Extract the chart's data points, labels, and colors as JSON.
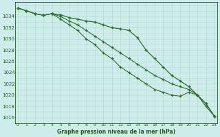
{
  "x": [
    0,
    1,
    2,
    3,
    4,
    5,
    6,
    7,
    8,
    9,
    10,
    11,
    12,
    13,
    14,
    15,
    16,
    17,
    18,
    19,
    20,
    21,
    22,
    23
  ],
  "line1": [
    1035.5,
    1035.0,
    1034.5,
    1034.2,
    1034.5,
    1034.3,
    1033.8,
    1033.5,
    1033.2,
    1033.0,
    1032.5,
    1032.0,
    1031.8,
    1031.5,
    1030.2,
    1028.0,
    1026.5,
    1025.0,
    1023.5,
    1022.5,
    1021.5,
    1020.0,
    1018.0,
    1016.2
  ],
  "line2": [
    1035.5,
    1035.0,
    1034.5,
    1034.2,
    1034.5,
    1034.0,
    1033.2,
    1032.5,
    1031.5,
    1030.5,
    1029.5,
    1028.5,
    1027.5,
    1026.5,
    1025.5,
    1024.5,
    1023.5,
    1022.8,
    1022.0,
    1021.5,
    1021.0,
    1020.0,
    1018.5,
    1016.2
  ],
  "line3": [
    1035.5,
    1035.0,
    1034.5,
    1034.2,
    1034.5,
    1033.5,
    1032.5,
    1031.5,
    1030.0,
    1029.0,
    1027.5,
    1026.5,
    1025.0,
    1024.0,
    1023.0,
    1022.0,
    1021.0,
    1020.5,
    1020.0,
    1019.8,
    1020.5,
    1020.0,
    1018.5,
    1016.2
  ],
  "line_colors": [
    "#2d6e2d",
    "#2d6e2d",
    "#2d6e2d"
  ],
  "marker_line_idx": 0,
  "bg_color": "#ceecea",
  "grid_color": "#aed8d4",
  "text_color": "#1e5c1e",
  "xlabel": "Graphe pression niveau de la mer (hPa)",
  "ylim": [
    1015.0,
    1036.5
  ],
  "xlim": [
    -0.3,
    23.3
  ],
  "yticks": [
    1016,
    1018,
    1020,
    1022,
    1024,
    1026,
    1028,
    1030,
    1032,
    1034
  ],
  "xticks": [
    0,
    1,
    2,
    3,
    4,
    5,
    6,
    7,
    8,
    9,
    10,
    11,
    12,
    13,
    14,
    15,
    16,
    17,
    18,
    19,
    20,
    21,
    22,
    23
  ]
}
